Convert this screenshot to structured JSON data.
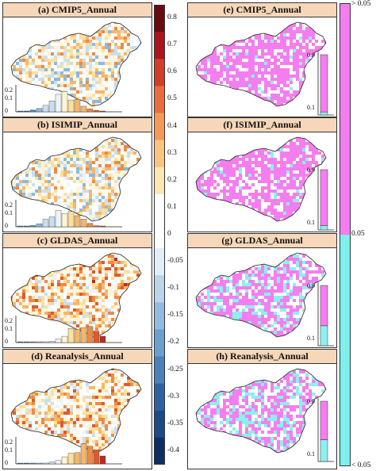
{
  "panels_left": [
    {
      "title": "(a) CMIP5_Annual"
    },
    {
      "title": "(b) ISIMIP_Annual"
    },
    {
      "title": "(c) GLDAS_Annual"
    },
    {
      "title": "(d) Reanalysis_Annual"
    }
  ],
  "panels_right": [
    {
      "title": "(e) CMIP5_Annual",
      "share_above": 0.95
    },
    {
      "title": "(f) ISIMIP_Annual",
      "share_above": 0.93
    },
    {
      "title": "(g) GLDAS_Annual",
      "share_above": 0.67
    },
    {
      "title": "(h) Reanalysis_Annual",
      "share_above": 0.64
    }
  ],
  "histogram_ticks": [
    "0.2",
    "0.1",
    "0"
  ],
  "inset_ticks": [
    "0.9",
    "0.1"
  ],
  "colorbar_left": {
    "ticks": [
      "0.8",
      "0.7",
      "0.6",
      "0.5",
      "0.4",
      "0.3",
      "0.2",
      "0.1",
      "0",
      "-0.05",
      "-0.1",
      "-0.15",
      "-0.2",
      "-0.25",
      "-0.3",
      "-0.35",
      "-0.4"
    ]
  },
  "colorbar_right": {
    "labels": [
      "> 0.05",
      "0.05",
      "< 0.05"
    ],
    "colors": {
      "above": "#f47ef0",
      "below": "#7ef0ee"
    }
  },
  "colors": {
    "title_bg": "#f6d7b9",
    "pink": "#f47ef0",
    "cyan": "#8cf0ef"
  }
}
